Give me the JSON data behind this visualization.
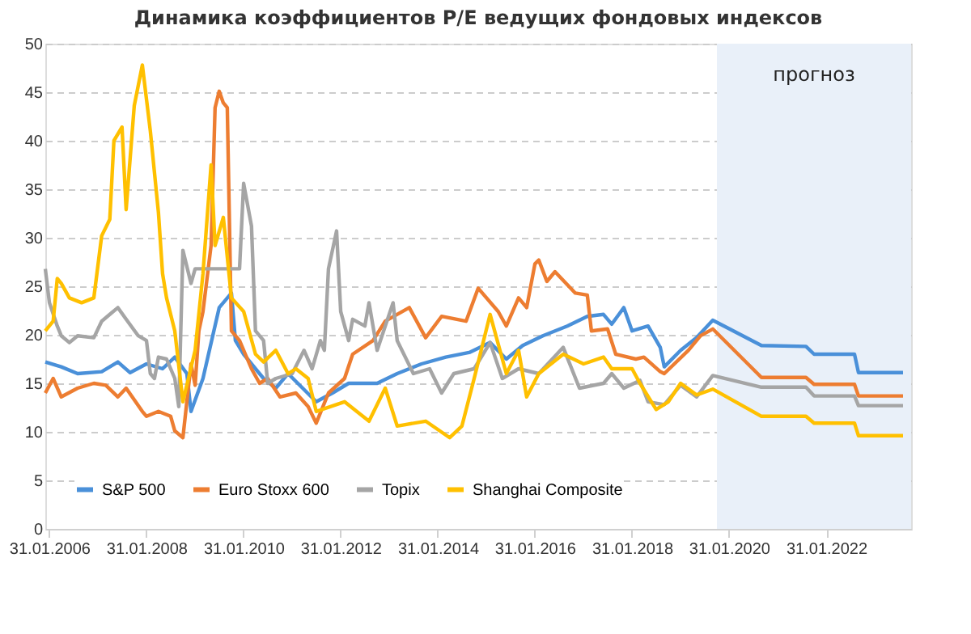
{
  "chart_data": {
    "type": "line",
    "title": "Динамика коэффициентов P/E ведущих фондовых индексов",
    "xlim": [
      "2006-01-01",
      "2023-11-01"
    ],
    "ylim": [
      0,
      50
    ],
    "yticks": [
      0,
      5,
      10,
      15,
      20,
      25,
      30,
      35,
      40,
      45,
      50
    ],
    "xticks": [
      {
        "value": "2006-01-31",
        "label": "31.01.2006"
      },
      {
        "value": "2008-01-31",
        "label": "31.01.2008"
      },
      {
        "value": "2010-01-31",
        "label": "31.01.2010"
      },
      {
        "value": "2012-01-31",
        "label": "31.01.2012"
      },
      {
        "value": "2014-01-31",
        "label": "31.01.2014"
      },
      {
        "value": "2016-01-31",
        "label": "31.01.2016"
      },
      {
        "value": "2018-01-31",
        "label": "31.01.2018"
      },
      {
        "value": "2020-01-31",
        "label": "31.01.2020"
      },
      {
        "value": "2022-01-31",
        "label": "31.01.2022"
      }
    ],
    "grid": "y",
    "legend": "bottom",
    "line_style": "solid",
    "bands": [
      {
        "axis": "x",
        "from": "2019-11-01",
        "to": "2023-11-01",
        "label": "прогноз",
        "color": "#e9f0f9"
      }
    ],
    "series": [
      {
        "name": "S&P 500",
        "color": "#4a90d9",
        "x": [
          "2006-01",
          "2006-05",
          "2006-09",
          "2007-03",
          "2007-07",
          "2007-10",
          "2008-02",
          "2008-06",
          "2008-09",
          "2008-12",
          "2009-01",
          "2009-04",
          "2009-08",
          "2009-11",
          "2009-12",
          "2010-02",
          "2010-05",
          "2010-07",
          "2010-10",
          "2011-01",
          "2011-08",
          "2011-12",
          "2012-04",
          "2012-11",
          "2013-04",
          "2013-10",
          "2014-04",
          "2014-10",
          "2015-03",
          "2015-07",
          "2015-11",
          "2016-04",
          "2016-10",
          "2017-03",
          "2017-07",
          "2017-09",
          "2017-12",
          "2018-02",
          "2018-06",
          "2018-09",
          "2018-10",
          "2019-02",
          "2019-06",
          "2019-10",
          "2020-10",
          "2021-09",
          "2021-11",
          "2022-09",
          "2022-10",
          "2023-09"
        ],
        "values": [
          17.2,
          16.7,
          16.0,
          16.2,
          17.2,
          16.1,
          17.0,
          16.5,
          17.7,
          16.0,
          12.1,
          15.5,
          22.8,
          24.3,
          19.4,
          18.0,
          16.5,
          15.5,
          14.5,
          16.0,
          13.1,
          14.0,
          15.0,
          15.0,
          16.0,
          17.0,
          17.7,
          18.2,
          19.2,
          17.5,
          18.9,
          19.9,
          20.9,
          21.9,
          22.1,
          21.1,
          22.8,
          20.4,
          20.9,
          18.7,
          16.7,
          18.4,
          19.7,
          21.5,
          18.9,
          18.8,
          18.0,
          18.0,
          16.1,
          16.1
        ]
      },
      {
        "name": "Euro Stoxx 600",
        "color": "#ed7d31",
        "x": [
          "2006-01",
          "2006-03",
          "2006-05",
          "2006-09",
          "2007-01",
          "2007-04",
          "2007-07",
          "2007-09",
          "2008-01",
          "2008-02",
          "2008-05",
          "2008-08",
          "2008-09",
          "2008-11",
          "2009-01",
          "2009-02",
          "2009-03",
          "2009-04",
          "2009-06",
          "2009-07",
          "2009-08",
          "2009-09",
          "2009-10",
          "2009-11",
          "2010-01",
          "2010-04",
          "2010-06",
          "2010-08",
          "2010-11",
          "2011-03",
          "2011-06",
          "2011-08",
          "2011-11",
          "2012-03",
          "2012-05",
          "2012-10",
          "2013-01",
          "2013-07",
          "2013-11",
          "2014-03",
          "2014-09",
          "2014-12",
          "2015-05",
          "2015-07",
          "2015-10",
          "2015-12",
          "2016-02",
          "2016-03",
          "2016-05",
          "2016-07",
          "2016-12",
          "2017-03",
          "2017-04",
          "2017-08",
          "2017-10",
          "2018-03",
          "2018-05",
          "2018-09",
          "2018-10",
          "2019-04",
          "2019-07",
          "2019-10",
          "2020-10",
          "2021-09",
          "2021-11",
          "2022-09",
          "2022-10",
          "2023-09"
        ],
        "values": [
          14.0,
          15.5,
          13.6,
          14.5,
          15.0,
          14.8,
          13.6,
          14.5,
          12.1,
          11.6,
          12.1,
          11.6,
          10.1,
          9.4,
          17.0,
          14.8,
          20.4,
          22.4,
          29.2,
          43.4,
          45.1,
          43.9,
          43.4,
          20.4,
          19.4,
          16.5,
          15.0,
          15.5,
          13.6,
          14.0,
          12.6,
          10.9,
          14.0,
          15.5,
          18.0,
          19.4,
          21.4,
          22.8,
          19.7,
          21.9,
          21.4,
          24.8,
          22.4,
          20.9,
          23.8,
          22.8,
          27.3,
          27.7,
          25.5,
          26.5,
          24.3,
          24.1,
          20.4,
          20.6,
          18.0,
          17.5,
          17.7,
          16.2,
          16.0,
          18.4,
          19.9,
          20.6,
          15.6,
          15.6,
          14.9,
          14.9,
          13.7,
          13.7
        ]
      },
      {
        "name": "Topix",
        "color": "#a5a5a5",
        "x": [
          "2006-01",
          "2006-02",
          "2006-04",
          "2006-05",
          "2006-07",
          "2006-09",
          "2007-01",
          "2007-03",
          "2007-05",
          "2007-07",
          "2007-09",
          "2007-12",
          "2008-02",
          "2008-03",
          "2008-04",
          "2008-05",
          "2008-07",
          "2008-09",
          "2008-10",
          "2008-11",
          "2009-01",
          "2009-02",
          "2009-04",
          "2010-01",
          "2010-02",
          "2010-04",
          "2010-05",
          "2010-07",
          "2010-08",
          "2010-10",
          "2011-02",
          "2011-05",
          "2011-07",
          "2011-09",
          "2011-10",
          "2011-11",
          "2012-01",
          "2012-02",
          "2012-04",
          "2012-05",
          "2012-08",
          "2012-09",
          "2012-11",
          "2013-03",
          "2013-04",
          "2013-08",
          "2013-12",
          "2014-03",
          "2014-06",
          "2014-11",
          "2015-03",
          "2015-06",
          "2015-10",
          "2016-03",
          "2016-09",
          "2017-01",
          "2017-07",
          "2017-09",
          "2017-12",
          "2018-04",
          "2018-06",
          "2018-10",
          "2019-02",
          "2019-06",
          "2019-10",
          "2020-10",
          "2021-09",
          "2021-11",
          "2022-09",
          "2022-10",
          "2023-09"
        ],
        "values": [
          26.8,
          23.3,
          20.9,
          19.9,
          19.2,
          19.9,
          19.7,
          21.4,
          22.1,
          22.8,
          21.6,
          19.9,
          19.4,
          16.0,
          15.5,
          17.7,
          17.5,
          15.5,
          12.6,
          28.7,
          25.3,
          26.8,
          26.8,
          26.8,
          35.6,
          31.2,
          20.4,
          19.4,
          15.0,
          15.5,
          16.0,
          18.4,
          16.5,
          19.4,
          18.4,
          26.8,
          30.7,
          22.4,
          19.4,
          21.6,
          20.9,
          23.3,
          18.4,
          23.3,
          19.4,
          16.0,
          16.5,
          14.0,
          16.0,
          16.5,
          19.2,
          15.5,
          16.5,
          16.0,
          18.7,
          14.5,
          15.0,
          16.0,
          14.5,
          15.3,
          13.1,
          12.8,
          14.8,
          13.6,
          15.8,
          14.6,
          14.6,
          13.7,
          13.7,
          12.7,
          12.7
        ]
      },
      {
        "name": "Shanghai Composite",
        "color": "#ffc000",
        "x": [
          "2006-01",
          "2006-03",
          "2006-04",
          "2006-05",
          "2006-07",
          "2006-10",
          "2007-01",
          "2007-03",
          "2007-05",
          "2007-06",
          "2007-08",
          "2007-09",
          "2007-11",
          "2008-01",
          "2008-03",
          "2008-05",
          "2008-06",
          "2008-07",
          "2008-09",
          "2008-11",
          "2009-02",
          "2009-04",
          "2009-06",
          "2009-07",
          "2009-09",
          "2009-11",
          "2010-02",
          "2010-05",
          "2010-07",
          "2010-10",
          "2011-01",
          "2011-03",
          "2011-06",
          "2011-08",
          "2012-03",
          "2012-09",
          "2013-01",
          "2013-04",
          "2013-11",
          "2014-05",
          "2014-08",
          "2014-11",
          "2015-03",
          "2015-07",
          "2015-10",
          "2015-12",
          "2016-03",
          "2016-09",
          "2017-02",
          "2017-07",
          "2017-09",
          "2018-02",
          "2018-04",
          "2018-08",
          "2018-11",
          "2019-02",
          "2019-06",
          "2019-10",
          "2020-10",
          "2021-09",
          "2021-11",
          "2022-09",
          "2022-10",
          "2023-09"
        ],
        "values": [
          20.4,
          21.4,
          25.8,
          25.3,
          23.8,
          23.3,
          23.8,
          30.2,
          31.9,
          40.0,
          41.4,
          32.9,
          43.6,
          47.8,
          41.0,
          32.6,
          26.3,
          23.8,
          20.4,
          13.1,
          18.4,
          26.3,
          37.5,
          29.2,
          32.1,
          23.8,
          22.4,
          18.0,
          17.2,
          18.4,
          16.0,
          16.5,
          15.5,
          12.1,
          13.1,
          11.1,
          14.5,
          10.6,
          11.1,
          9.4,
          10.6,
          15.5,
          22.1,
          16.0,
          18.4,
          13.6,
          16.0,
          18.0,
          17.0,
          17.7,
          16.5,
          16.5,
          15.0,
          12.3,
          13.1,
          15.0,
          13.8,
          14.4,
          11.6,
          11.6,
          10.9,
          10.9,
          9.6,
          9.6
        ]
      }
    ]
  }
}
